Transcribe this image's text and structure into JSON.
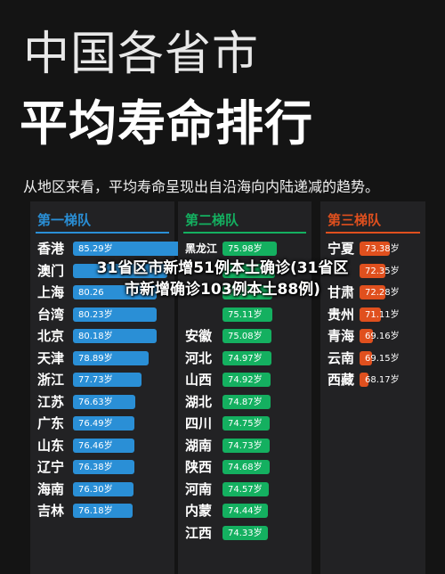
{
  "header": {
    "title_line1": "中国各省市",
    "title_line2": "平均寿命排行",
    "subtitle": "从地区来看，平均寿命呈现出自沿海向内陆递减的趋势。"
  },
  "overlay": {
    "line1": "31省区市新增51例本土确诊(31省区",
    "line2": "市新增确诊103例本土88例)"
  },
  "colors": {
    "tier1": "#2a8fd6",
    "tier2": "#14b060",
    "tier3": "#e0501e"
  },
  "chart_data": {
    "type": "bar",
    "unit": "岁",
    "xlim": [
      66,
      86
    ],
    "tiers": [
      {
        "title": "第一梯队",
        "color": "#2a8fd6",
        "items": [
          {
            "province": "香港",
            "value": 85.29,
            "label": "85.29岁"
          },
          {
            "province": "澳门",
            "value": 82.04,
            "label": ""
          },
          {
            "province": "上海",
            "value": 80.26,
            "label": "80.26"
          },
          {
            "province": "台湾",
            "value": 80.23,
            "label": "80.23岁"
          },
          {
            "province": "北京",
            "value": 80.18,
            "label": "80.18岁"
          },
          {
            "province": "天津",
            "value": 78.89,
            "label": "78.89岁"
          },
          {
            "province": "浙江",
            "value": 77.73,
            "label": "77.73岁"
          },
          {
            "province": "江苏",
            "value": 76.63,
            "label": "76.63岁"
          },
          {
            "province": "广东",
            "value": 76.49,
            "label": "76.49岁"
          },
          {
            "province": "山东",
            "value": 76.46,
            "label": "76.46岁"
          },
          {
            "province": "辽宁",
            "value": 76.38,
            "label": "76.38岁"
          },
          {
            "province": "海南",
            "value": 76.3,
            "label": "76.30岁"
          },
          {
            "province": "吉林",
            "value": 76.18,
            "label": "76.18岁"
          }
        ]
      },
      {
        "title": "第二梯队",
        "color": "#14b060",
        "items": [
          {
            "province": "黑龙江",
            "value": 75.98,
            "label": "75.98岁"
          },
          {
            "province": "",
            "value": 75.7,
            "label": ""
          },
          {
            "province": "",
            "value": 75.2,
            "label": "75.2"
          },
          {
            "province": "",
            "value": 75.11,
            "label": "75.11岁"
          },
          {
            "province": "安徽",
            "value": 75.08,
            "label": "75.08岁"
          },
          {
            "province": "河北",
            "value": 74.97,
            "label": "74.97岁"
          },
          {
            "province": "山西",
            "value": 74.92,
            "label": "74.92岁"
          },
          {
            "province": "湖北",
            "value": 74.87,
            "label": "74.87岁"
          },
          {
            "province": "四川",
            "value": 74.75,
            "label": "74.75岁"
          },
          {
            "province": "湖南",
            "value": 74.73,
            "label": "74.73岁"
          },
          {
            "province": "陕西",
            "value": 74.68,
            "label": "74.68岁"
          },
          {
            "province": "河南",
            "value": 74.57,
            "label": "74.57岁"
          },
          {
            "province": "内蒙",
            "value": 74.44,
            "label": "74.44岁"
          },
          {
            "province": "江西",
            "value": 74.33,
            "label": "74.33岁"
          }
        ]
      },
      {
        "title": "第三梯队",
        "color": "#e0501e",
        "items": [
          {
            "province": "宁夏",
            "value": 73.38,
            "label": "73.38岁"
          },
          {
            "province": "",
            "value": 72.35,
            "label": "72.35岁"
          },
          {
            "province": "甘肃",
            "value": 72.28,
            "label": "72.28岁"
          },
          {
            "province": "贵州",
            "value": 71.11,
            "label": "71.11岁"
          },
          {
            "province": "青海",
            "value": 69.16,
            "label": "69.16岁"
          },
          {
            "province": "云南",
            "value": 69.15,
            "label": "69.15岁"
          },
          {
            "province": "西藏",
            "value": 68.17,
            "label": "68.17岁"
          }
        ]
      }
    ]
  }
}
